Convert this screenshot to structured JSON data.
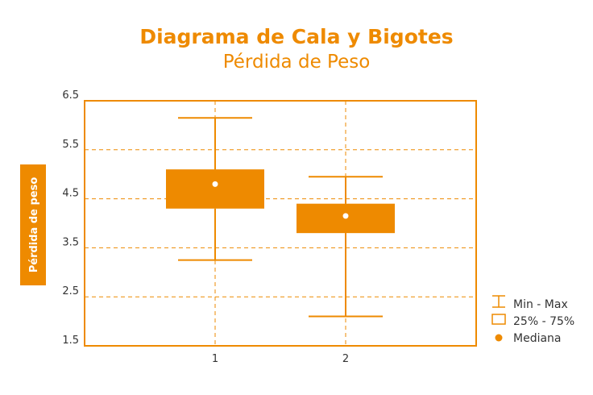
{
  "chart_data": {
    "type": "boxplot",
    "title": "Diagrama de Cala y Bigotes",
    "subtitle": "Pérdida de Peso",
    "xlabel": "",
    "ylabel": "Pérdida de peso",
    "ylim": [
      1.5,
      6.5
    ],
    "yticks": [
      "6.5",
      "5.5",
      "4.5",
      "3.5",
      "2.5",
      "1.5"
    ],
    "ytick_values": [
      6.5,
      5.5,
      4.5,
      3.5,
      2.5,
      1.5
    ],
    "categories": [
      "1",
      "2"
    ],
    "boxes": [
      {
        "category": "1",
        "min": 3.25,
        "q1": 4.3,
        "median": 4.8,
        "q3": 5.1,
        "max": 6.15
      },
      {
        "category": "2",
        "min": 2.1,
        "q1": 3.8,
        "median": 4.15,
        "q3": 4.4,
        "max": 4.95
      }
    ],
    "grid": true,
    "legend_position": "bottom-right",
    "legend": [
      {
        "symbol": "whisker-icon",
        "label": "Min - Max"
      },
      {
        "symbol": "box-icon",
        "label": "25% - 75%"
      },
      {
        "symbol": "dot-icon",
        "label": "Mediana"
      }
    ],
    "colors": {
      "accent": "#EE8A00",
      "median": "#ffffff",
      "text": "#333333"
    }
  }
}
